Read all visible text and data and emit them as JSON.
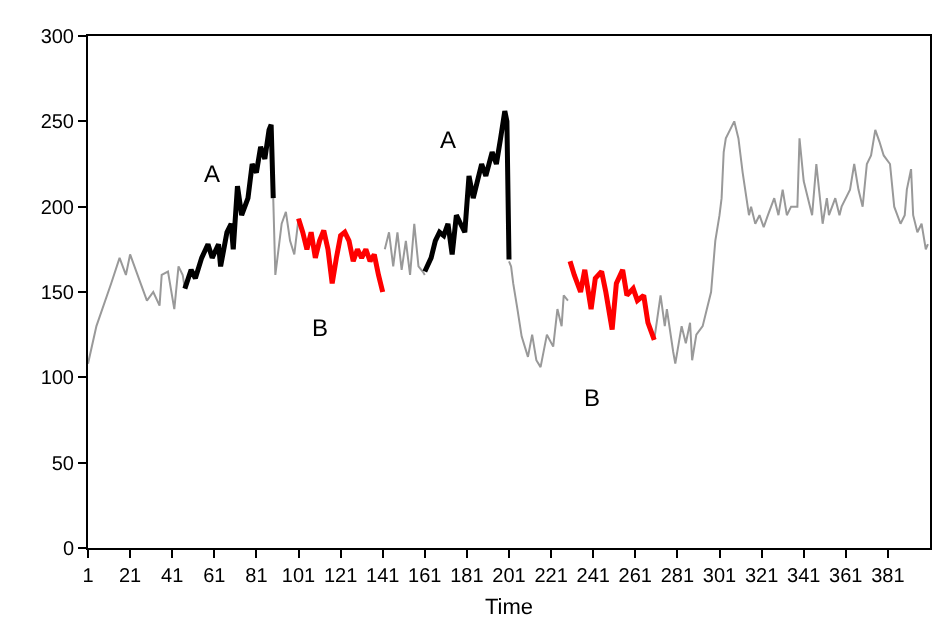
{
  "chart_data": {
    "type": "line",
    "xlabel": "Time",
    "grid": false,
    "marker": "none",
    "line_style": "solid",
    "xlim": [
      1,
      401
    ],
    "xticks": [
      1,
      21,
      41,
      61,
      81,
      101,
      121,
      141,
      161,
      181,
      201,
      221,
      241,
      261,
      281,
      301,
      321,
      341,
      361,
      381
    ],
    "ylim": [
      0,
      300
    ],
    "yticks": [
      0,
      50,
      100,
      150,
      200,
      250,
      300
    ],
    "series": [
      {
        "color": "#999999",
        "x": [
          1,
          5,
          12,
          16,
          19,
          21,
          26,
          29,
          32,
          35,
          36,
          39,
          42,
          44,
          46,
          47,
          48,
          89,
          90,
          93,
          95,
          97,
          99,
          101,
          121,
          141,
          142,
          144,
          146,
          148,
          150,
          152,
          154,
          156,
          158,
          160,
          161,
          181,
          201,
          202,
          203,
          205,
          207,
          210,
          212,
          214,
          216,
          219,
          222,
          224,
          226,
          227,
          229,
          230,
          250,
          270,
          273,
          275,
          276,
          279,
          280,
          283,
          285,
          287,
          288,
          290,
          293,
          295,
          297,
          299,
          301,
          302,
          303,
          304,
          306,
          308,
          310,
          312,
          315,
          316,
          318,
          320,
          322,
          324,
          327,
          329,
          331,
          333,
          335,
          338,
          339,
          341,
          343,
          345,
          347,
          350,
          352,
          353,
          356,
          358,
          359,
          363,
          365,
          367,
          369,
          371,
          373,
          375,
          377,
          379,
          382,
          384,
          387,
          389,
          390,
          392,
          393,
          395,
          397,
          399,
          400
        ],
        "values": [
          108,
          130,
          155,
          170,
          160,
          172,
          155,
          145,
          150,
          142,
          160,
          162,
          140,
          165,
          160,
          152,
          null,
          205,
          160,
          190,
          197,
          180,
          172,
          193,
          null,
          null,
          175,
          185,
          165,
          185,
          163,
          180,
          160,
          190,
          165,
          162,
          160,
          null,
          168,
          165,
          155,
          140,
          124,
          112,
          125,
          110,
          106,
          125,
          118,
          140,
          130,
          148,
          145,
          null,
          null,
          122,
          148,
          130,
          140,
          115,
          108,
          130,
          120,
          132,
          110,
          125,
          130,
          140,
          150,
          180,
          195,
          205,
          232,
          240,
          245,
          250,
          240,
          220,
          195,
          200,
          190,
          195,
          188,
          195,
          205,
          195,
          210,
          195,
          200,
          200,
          240,
          215,
          205,
          195,
          225,
          190,
          205,
          195,
          205,
          195,
          200,
          210,
          225,
          210,
          200,
          225,
          230,
          245,
          238,
          230,
          225,
          200,
          190,
          195,
          210,
          222,
          195,
          185,
          190,
          175,
          178
        ]
      },
      {
        "color": "#000000",
        "x": [
          47,
          50,
          52,
          55,
          58,
          60,
          63,
          64,
          67,
          69,
          70,
          72,
          74,
          77,
          79,
          81,
          83,
          85,
          87,
          88,
          89,
          125,
          161,
          164,
          166,
          168,
          170,
          172,
          174,
          176,
          178,
          180,
          182,
          184,
          185,
          188,
          190,
          193,
          195,
          197,
          199,
          200,
          201
        ],
        "values": [
          152,
          163,
          158,
          170,
          178,
          170,
          178,
          165,
          185,
          190,
          175,
          212,
          195,
          205,
          225,
          220,
          235,
          228,
          245,
          248,
          205,
          null,
          162,
          170,
          180,
          185,
          183,
          190,
          172,
          195,
          190,
          185,
          218,
          205,
          210,
          225,
          218,
          232,
          225,
          240,
          256,
          250,
          169
        ]
      },
      {
        "color": "#ff0000",
        "x": [
          101,
          103,
          105,
          107,
          109,
          111,
          113,
          115,
          117,
          119,
          121,
          123,
          125,
          127,
          129,
          131,
          133,
          135,
          137,
          139,
          141,
          185,
          230,
          232,
          235,
          237,
          240,
          242,
          245,
          247,
          250,
          252,
          255,
          257,
          260,
          262,
          265,
          267,
          270
        ],
        "values": [
          193,
          185,
          175,
          185,
          170,
          180,
          186,
          175,
          155,
          170,
          183,
          185,
          180,
          168,
          175,
          170,
          175,
          168,
          172,
          160,
          150,
          null,
          168,
          160,
          150,
          163,
          140,
          158,
          162,
          150,
          128,
          155,
          163,
          148,
          152,
          145,
          148,
          132,
          122
        ]
      }
    ],
    "annotations": [
      "A",
      "A",
      "B",
      "B"
    ]
  }
}
